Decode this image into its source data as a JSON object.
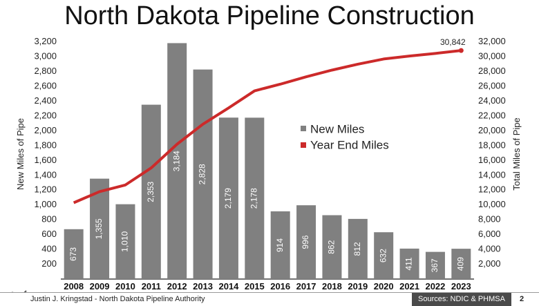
{
  "title": "North Dakota Pipeline Construction",
  "footer": {
    "author": "Justin J. Kringstad - North Dakota Pipeline Authority",
    "sources": "Sources: NDIC & PHMSA",
    "page": "2"
  },
  "chart_data": {
    "type": "bar",
    "categories": [
      "2008",
      "2009",
      "2010",
      "2011",
      "2012",
      "2013",
      "2014",
      "2015",
      "2016",
      "2017",
      "2018",
      "2019",
      "2020",
      "2021",
      "2022",
      "2023"
    ],
    "series": [
      {
        "name": "New Miles",
        "type": "bar",
        "axis": "left",
        "color": "#808080",
        "values": [
          673,
          1355,
          1010,
          2353,
          3184,
          2828,
          2179,
          2178,
          914,
          996,
          862,
          812,
          632,
          411,
          367,
          409
        ],
        "value_labels": [
          "673",
          "1,355",
          "1,010",
          "2,353",
          "3,184",
          "2,828",
          "2,179",
          "2,178",
          "914",
          "996",
          "862",
          "812",
          "632",
          "411",
          "367",
          "409"
        ]
      },
      {
        "name": "Year End Miles",
        "type": "line",
        "axis": "right",
        "color": "#cc2a2a",
        "values": [
          10300,
          11800,
          12700,
          15000,
          18200,
          20900,
          23100,
          25400,
          26300,
          27300,
          28200,
          29000,
          29700,
          30100,
          30450,
          30842
        ]
      }
    ],
    "annotation": "30,842",
    "ylabel_left": "New Miles of Pipe",
    "ylabel_right": "Total Miles of Pipe",
    "ylim_left": [
      0,
      3300
    ],
    "ylim_right": [
      0,
      33000
    ],
    "yticks_left": [
      "200",
      "400",
      "600",
      "800",
      "1,000",
      "1,200",
      "1,400",
      "1,600",
      "1,800",
      "2,000",
      "2,200",
      "2,400",
      "2,600",
      "2,800",
      "3,000",
      "3,200"
    ],
    "yticks_right": [
      "2,000",
      "4,000",
      "6,000",
      "8,000",
      "10,000",
      "12,000",
      "14,000",
      "16,000",
      "18,000",
      "20,000",
      "22,000",
      "24,000",
      "26,000",
      "28,000",
      "30,000",
      "32,000"
    ],
    "legend_position": "center",
    "grid": false
  }
}
